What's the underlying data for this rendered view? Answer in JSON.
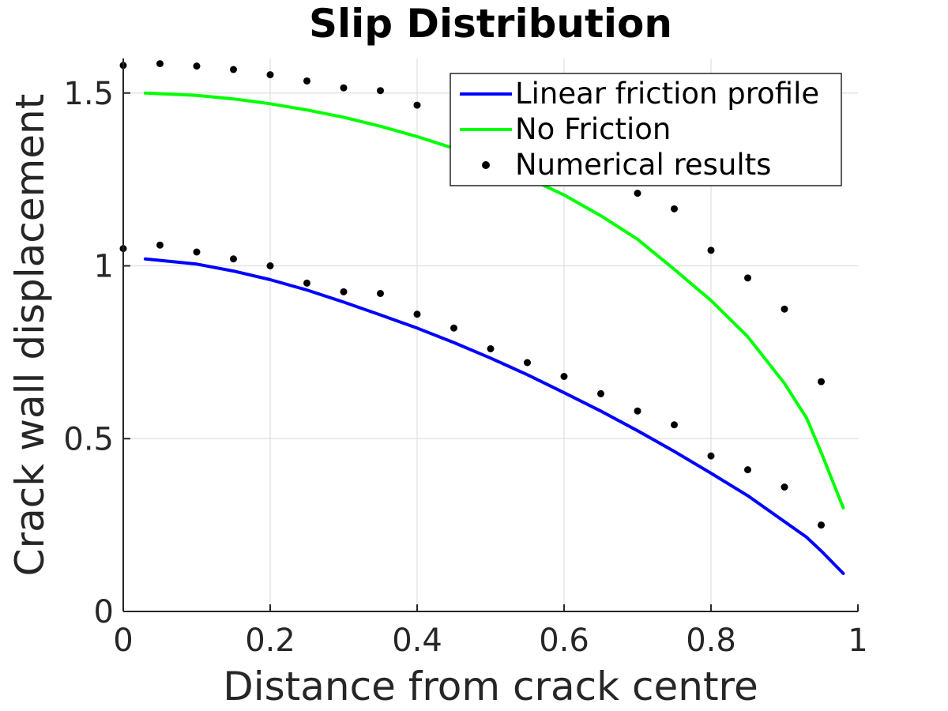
{
  "chart_data": {
    "type": "line",
    "title": "Slip Distribution",
    "xlabel": "Distance from crack centre",
    "ylabel": "Crack wall displacement",
    "xlim": [
      0,
      1
    ],
    "ylim": [
      0,
      1.6
    ],
    "xticks": [
      0,
      0.2,
      0.4,
      0.6,
      0.8,
      1
    ],
    "xtick_labels": [
      "0",
      "0.2",
      "0.4",
      "0.6",
      "0.8",
      "1"
    ],
    "yticks": [
      0,
      0.5,
      1,
      1.5
    ],
    "ytick_labels": [
      "0",
      "0.5",
      "1",
      "1.5"
    ],
    "grid": true,
    "legend_position": "top-right",
    "series": [
      {
        "name": "Linear friction profile",
        "style": "line",
        "color": "#0000ff",
        "x": [
          0.03,
          0.1,
          0.15,
          0.2,
          0.25,
          0.3,
          0.35,
          0.4,
          0.45,
          0.5,
          0.55,
          0.6,
          0.65,
          0.7,
          0.75,
          0.8,
          0.85,
          0.9,
          0.93,
          0.95,
          0.98
        ],
        "y": [
          1.02,
          1.005,
          0.985,
          0.96,
          0.93,
          0.895,
          0.858,
          0.82,
          0.778,
          0.733,
          0.685,
          0.633,
          0.58,
          0.523,
          0.463,
          0.4,
          0.335,
          0.26,
          0.215,
          0.175,
          0.11
        ]
      },
      {
        "name": "No Friction",
        "style": "line",
        "color": "#00ff00",
        "x": [
          0.03,
          0.1,
          0.15,
          0.2,
          0.25,
          0.3,
          0.35,
          0.4,
          0.45,
          0.5,
          0.55,
          0.6,
          0.65,
          0.7,
          0.75,
          0.8,
          0.85,
          0.9,
          0.93,
          0.95,
          0.98
        ],
        "y": [
          1.5,
          1.493,
          1.483,
          1.469,
          1.451,
          1.43,
          1.404,
          1.374,
          1.34,
          1.3,
          1.255,
          1.205,
          1.145,
          1.077,
          0.99,
          0.9,
          0.795,
          0.66,
          0.56,
          0.46,
          0.3
        ]
      },
      {
        "name": "Numerical results",
        "style": "markers",
        "color": "#000000",
        "x": [
          0,
          0.05,
          0.1,
          0.15,
          0.2,
          0.25,
          0.3,
          0.35,
          0.4,
          0.45,
          0.5,
          0.55,
          0.6,
          0.65,
          0.7,
          0.75,
          0.8,
          0.85,
          0.9,
          0.95,
          0,
          0.05,
          0.1,
          0.15,
          0.2,
          0.25,
          0.3,
          0.35,
          0.4,
          0.45,
          0.5,
          0.55,
          0.6,
          0.65,
          0.7,
          0.75,
          0.8,
          0.85,
          0.9,
          0.95
        ],
        "y": [
          1.58,
          1.585,
          1.578,
          1.568,
          1.553,
          1.535,
          1.515,
          1.507,
          1.465,
          1.405,
          1.35,
          1.33,
          1.28,
          1.25,
          1.21,
          1.165,
          1.045,
          0.965,
          0.875,
          0.665,
          1.05,
          1.06,
          1.04,
          1.02,
          1.0,
          0.95,
          0.925,
          0.92,
          0.86,
          0.82,
          0.76,
          0.72,
          0.68,
          0.63,
          0.58,
          0.54,
          0.45,
          0.41,
          0.36,
          0.25
        ]
      }
    ]
  }
}
